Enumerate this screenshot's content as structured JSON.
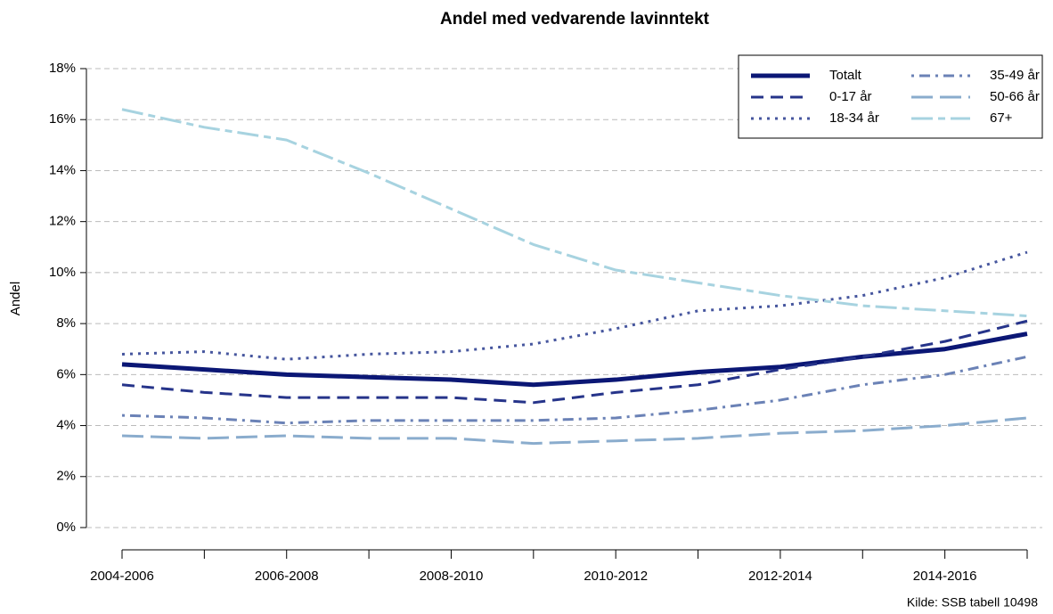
{
  "chart_data": {
    "type": "line",
    "title": "Andel med vedvarende lavinntekt",
    "y_label": "Andel",
    "source": "Kilde: SSB tabell 10498",
    "categories": [
      "2004-2006",
      null,
      "2006-2008",
      null,
      "2008-2010",
      null,
      "2010-2012",
      null,
      "2012-2014",
      null,
      "2014-2016",
      null
    ],
    "ylim": [
      0,
      18
    ],
    "yticks": [
      {
        "value": 0,
        "label": "0%"
      },
      {
        "value": 2,
        "label": "2%"
      },
      {
        "value": 4,
        "label": "4%"
      },
      {
        "value": 6,
        "label": "6%"
      },
      {
        "value": 8,
        "label": "8%"
      },
      {
        "value": 10,
        "label": "10%"
      },
      {
        "value": 12,
        "label": "12%"
      },
      {
        "value": 14,
        "label": "14%"
      },
      {
        "value": 16,
        "label": "16%"
      },
      {
        "value": 18,
        "label": "18%"
      }
    ],
    "grid": true,
    "legend_position": "top-right",
    "series": [
      {
        "name": "Totalt",
        "color": "#0b1775",
        "linestyle": "solid",
        "values": [
          6.4,
          6.2,
          6.0,
          5.9,
          5.8,
          5.6,
          5.8,
          6.1,
          6.3,
          6.7,
          7.0,
          7.6
        ]
      },
      {
        "name": "0-17 år",
        "color": "#26348a",
        "linestyle": "dashed",
        "values": [
          5.6,
          5.3,
          5.1,
          5.1,
          5.1,
          4.9,
          5.3,
          5.6,
          6.2,
          6.7,
          7.3,
          8.1
        ]
      },
      {
        "name": "18-34 år",
        "color": "#46569e",
        "linestyle": "dotted",
        "values": [
          6.8,
          6.9,
          6.6,
          6.8,
          6.9,
          7.2,
          7.8,
          8.5,
          8.7,
          9.1,
          9.8,
          10.8
        ]
      },
      {
        "name": "35-49 år",
        "color": "#6b82b6",
        "linestyle": "dashdot",
        "values": [
          4.4,
          4.3,
          4.1,
          4.2,
          4.2,
          4.2,
          4.3,
          4.6,
          5.0,
          5.6,
          6.0,
          6.7
        ]
      },
      {
        "name": "50-66 år",
        "color": "#8aaccd",
        "linestyle": "longdash",
        "values": [
          3.6,
          3.5,
          3.6,
          3.5,
          3.5,
          3.3,
          3.4,
          3.5,
          3.7,
          3.8,
          4.0,
          4.3
        ]
      },
      {
        "name": "67+",
        "color": "#a7d3e0",
        "linestyle": "twodash",
        "values": [
          16.4,
          15.7,
          15.2,
          13.9,
          12.5,
          11.1,
          10.1,
          9.6,
          9.1,
          8.7,
          8.5,
          8.3
        ]
      }
    ]
  }
}
